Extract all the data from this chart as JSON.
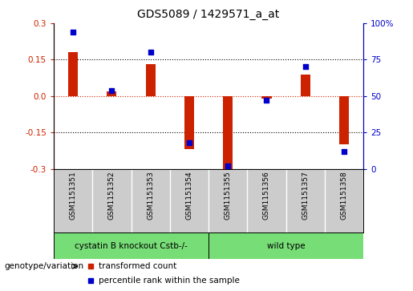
{
  "title": "GDS5089 / 1429571_a_at",
  "samples": [
    "GSM1151351",
    "GSM1151352",
    "GSM1151353",
    "GSM1151354",
    "GSM1151355",
    "GSM1151356",
    "GSM1151357",
    "GSM1151358"
  ],
  "transformed_count": [
    0.18,
    0.02,
    0.13,
    -0.22,
    -0.3,
    -0.01,
    0.09,
    -0.2
  ],
  "percentile_rank": [
    94,
    54,
    80,
    18,
    2,
    47,
    70,
    12
  ],
  "group1_label": "cystatin B knockout Cstb-/-",
  "group2_label": "wild type",
  "group1_count": 4,
  "group2_count": 4,
  "group_color": "#77dd77",
  "sample_bg_color": "#cccccc",
  "ylim_left": [
    -0.3,
    0.3
  ],
  "ylim_right": [
    0,
    100
  ],
  "yticks_left": [
    -0.3,
    -0.15,
    0.0,
    0.15,
    0.3
  ],
  "yticks_right": [
    0,
    25,
    50,
    75,
    100
  ],
  "bar_color": "#cc2200",
  "dot_color": "#0000cc",
  "bg_color": "#ffffff",
  "legend_red_label": "transformed count",
  "legend_blue_label": "percentile rank within the sample",
  "genotype_label": "genotype/variation",
  "title_fontsize": 10,
  "tick_fontsize": 7.5,
  "sample_fontsize": 6.5,
  "group_fontsize": 7.5,
  "legend_fontsize": 7.5,
  "bar_width": 0.25,
  "dot_size": 25
}
